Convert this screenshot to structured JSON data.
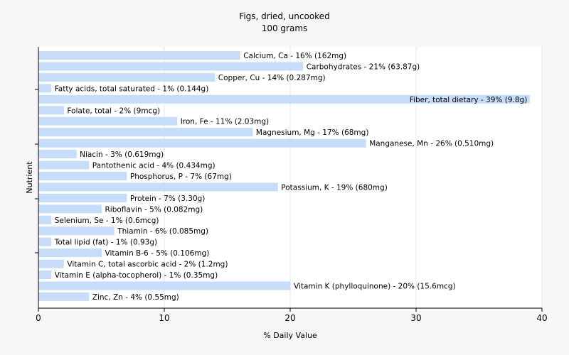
{
  "chart_data": {
    "type": "bar",
    "orientation": "horizontal",
    "title": "Figs, dried, uncooked",
    "subtitle": "100 grams",
    "xlabel": "% Daily Value",
    "ylabel": "Nutrient",
    "xlim": [
      0,
      40
    ],
    "xticks": [
      0,
      10,
      20,
      30,
      40
    ],
    "grid": true,
    "bar_color": "#c6dcf8",
    "categories": [
      "Calcium, Ca",
      "Carbohydrates",
      "Copper, Cu",
      "Fatty acids, total saturated",
      "Fiber, total dietary",
      "Folate, total",
      "Iron, Fe",
      "Magnesium, Mg",
      "Manganese, Mn",
      "Niacin",
      "Pantothenic acid",
      "Phosphorus, P",
      "Potassium, K",
      "Protein",
      "Riboflavin",
      "Selenium, Se",
      "Thiamin",
      "Total lipid (fat)",
      "Vitamin B-6",
      "Vitamin C, total ascorbic acid",
      "Vitamin E (alpha-tocopherol)",
      "Vitamin K (phylloquinone)",
      "Zinc, Zn"
    ],
    "values": [
      16,
      21,
      14,
      1,
      39,
      2,
      11,
      17,
      26,
      3,
      4,
      7,
      19,
      7,
      5,
      1,
      6,
      1,
      5,
      2,
      1,
      20,
      4
    ],
    "labels": [
      "Calcium, Ca - 16% (162mg)",
      "Carbohydrates - 21% (63.87g)",
      "Copper, Cu - 14% (0.287mg)",
      "Fatty acids, total saturated - 1% (0.144g)",
      "Fiber, total dietary - 39% (9.8g)",
      "Folate, total - 2% (9mcg)",
      "Iron, Fe - 11% (2.03mg)",
      "Magnesium, Mg - 17% (68mg)",
      "Manganese, Mn - 26% (0.510mg)",
      "Niacin - 3% (0.619mg)",
      "Pantothenic acid - 4% (0.434mg)",
      "Phosphorus, P - 7% (67mg)",
      "Potassium, K - 19% (680mg)",
      "Protein - 7% (3.30g)",
      "Riboflavin - 5% (0.082mg)",
      "Selenium, Se - 1% (0.6mcg)",
      "Thiamin - 6% (0.085mg)",
      "Total lipid (fat) - 1% (0.93g)",
      "Vitamin B-6 - 5% (0.106mg)",
      "Vitamin C, total ascorbic acid - 2% (1.2mg)",
      "Vitamin E (alpha-tocopherol) - 1% (0.35mg)",
      "Vitamin K (phylloquinone) - 20% (15.6mcg)",
      "Zinc, Zn - 4% (0.55mg)"
    ]
  }
}
